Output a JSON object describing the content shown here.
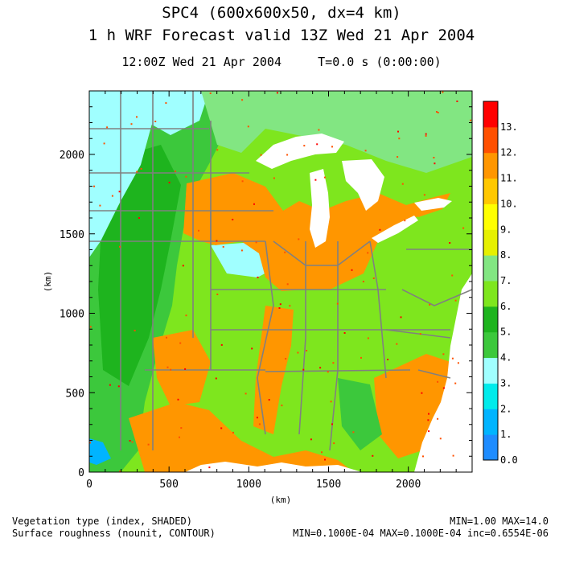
{
  "header": {
    "title_line1": "SPC4 (600x600x50, dx=4 km)",
    "title_line2": "1 h WRF Forecast valid 13Z Wed 21 Apr 2004",
    "time_line": "12:00Z Wed 21 Apr 2004     T=0.0 s (0:00:00)"
  },
  "footer": {
    "field1": "Vegetation type (index, SHADED)",
    "field2": "Surface roughness (nounit, CONTOUR)",
    "stats1": "MIN=1.00 MAX=14.0",
    "stats2": "MIN=0.1000E-04 MAX=0.1000E-04 inc=0.6554E-06"
  },
  "chart_data": {
    "type": "heatmap",
    "title": "SPC4 (600x600x50, dx=4 km)",
    "subtitle": "1 h WRF Forecast valid 13Z Wed 21 Apr 2004",
    "xlabel": "(km)",
    "ylabel": "(km)",
    "xlim": [
      0,
      2400
    ],
    "ylim": [
      0,
      2400
    ],
    "x_ticks": [
      0,
      500,
      1000,
      1500,
      2000
    ],
    "y_ticks": [
      0,
      500,
      1000,
      1500,
      2000
    ],
    "colorbar": {
      "labels": [
        "0.0",
        "1.",
        "2.",
        "3.",
        "4.",
        "5.",
        "6.",
        "7.",
        "8.",
        "9.",
        "10.",
        "11.",
        "12.",
        "13."
      ],
      "colors": [
        "#1e8cff",
        "#00b4ff",
        "#00ebeb",
        "#a0ffff",
        "#3cc83c",
        "#1eb41e",
        "#7ee61e",
        "#82e682",
        "#e6f000",
        "#ffff00",
        "#ffc800",
        "#ff9600",
        "#ff5000",
        "#ff0000"
      ]
    },
    "colors": {
      "water": "#ffffff",
      "lake": "#ffffff",
      "boundary": "#808080",
      "frame": "#000000"
    }
  }
}
